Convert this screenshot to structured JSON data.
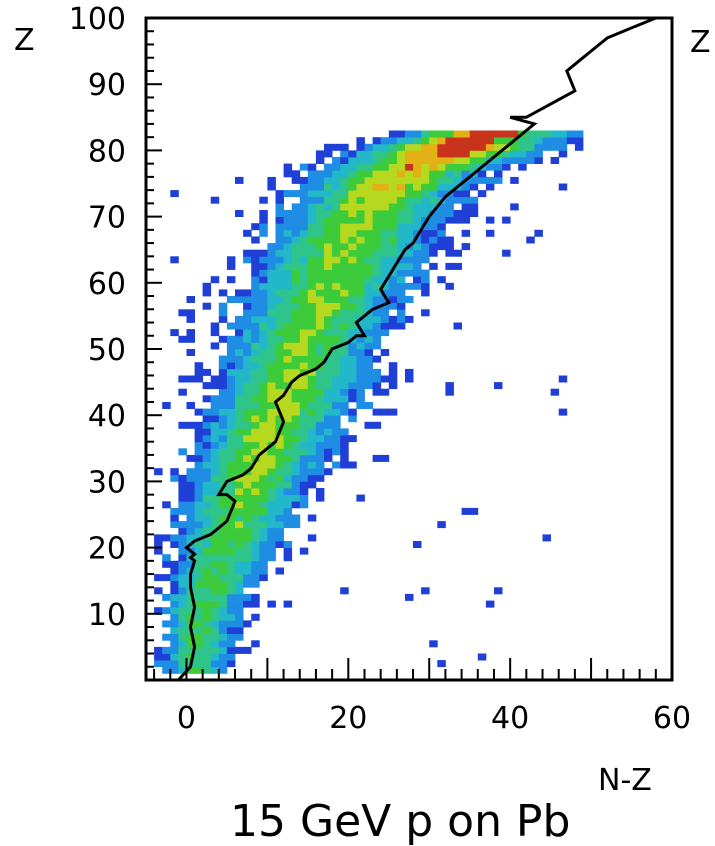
{
  "chart_data": {
    "type": "heatmap",
    "title": "15 GeV p on Pb",
    "xlabel": "N-Z",
    "ylabel": "Z",
    "xlim": [
      -5,
      60
    ],
    "ylim": [
      0,
      100
    ],
    "x_ticks": [
      "0",
      "20",
      "40",
      "60"
    ],
    "y_ticks": [
      "10",
      "20",
      "30",
      "40",
      "50",
      "60",
      "70",
      "80",
      "90",
      "100"
    ],
    "corner_label_right": "Z",
    "grid": false,
    "colormap": [
      "#1f3fd6",
      "#1e8de3",
      "#22b7c9",
      "#2fc58a",
      "#3ccb3a",
      "#b6d81f",
      "#e3b016",
      "#c8331c"
    ],
    "ridge_profile": [
      {
        "z": 2,
        "x": 0.5,
        "w": 2.2,
        "max": 0.8
      },
      {
        "z": 10,
        "x": 1.5,
        "w": 2.6,
        "max": 0.8
      },
      {
        "z": 20,
        "x": 4.5,
        "w": 3.6,
        "max": 0.85
      },
      {
        "z": 30,
        "x": 7.5,
        "w": 4.3,
        "max": 0.95
      },
      {
        "z": 40,
        "x": 11,
        "w": 4.8,
        "max": 1.05
      },
      {
        "z": 50,
        "x": 14,
        "w": 5.2,
        "max": 0.95
      },
      {
        "z": 60,
        "x": 17.5,
        "w": 5.6,
        "max": 0.95
      },
      {
        "z": 70,
        "x": 21.5,
        "w": 5.6,
        "max": 1.0
      },
      {
        "z": 76,
        "x": 26,
        "w": 5.8,
        "max": 1.15
      },
      {
        "z": 80,
        "x": 33,
        "w": 6.3,
        "max": 1.5
      },
      {
        "z": 82,
        "x": 38,
        "w": 6.0,
        "max": 1.6
      }
    ],
    "line_series": {
      "name": "",
      "x": [
        -1,
        0.5,
        1,
        0.5,
        1,
        0.5,
        0.5,
        1,
        0.5,
        1,
        0,
        1,
        3,
        5,
        6,
        5,
        4,
        5,
        7,
        8,
        9,
        10,
        11,
        12,
        11,
        12,
        13,
        14,
        16,
        17,
        18,
        20,
        21,
        22,
        21,
        23,
        25,
        24,
        25,
        26,
        27,
        28,
        30,
        32,
        35,
        37,
        38,
        40,
        42,
        43,
        40,
        42,
        45,
        48,
        47,
        49,
        51,
        52,
        54,
        56,
        58
      ],
      "y": [
        0,
        2,
        5,
        8,
        11,
        14,
        16,
        18,
        18.5,
        19,
        20,
        21,
        22,
        24,
        27,
        28,
        28,
        30,
        31,
        32,
        34,
        35,
        36,
        39,
        42,
        43,
        45,
        46,
        47,
        48,
        50,
        51,
        52,
        52,
        54,
        56,
        57,
        59,
        61,
        63,
        65,
        66,
        70,
        73,
        76,
        78,
        79,
        81,
        83,
        84,
        85,
        85,
        87,
        89,
        92,
        94,
        96,
        97,
        98,
        99,
        100
      ]
    }
  }
}
